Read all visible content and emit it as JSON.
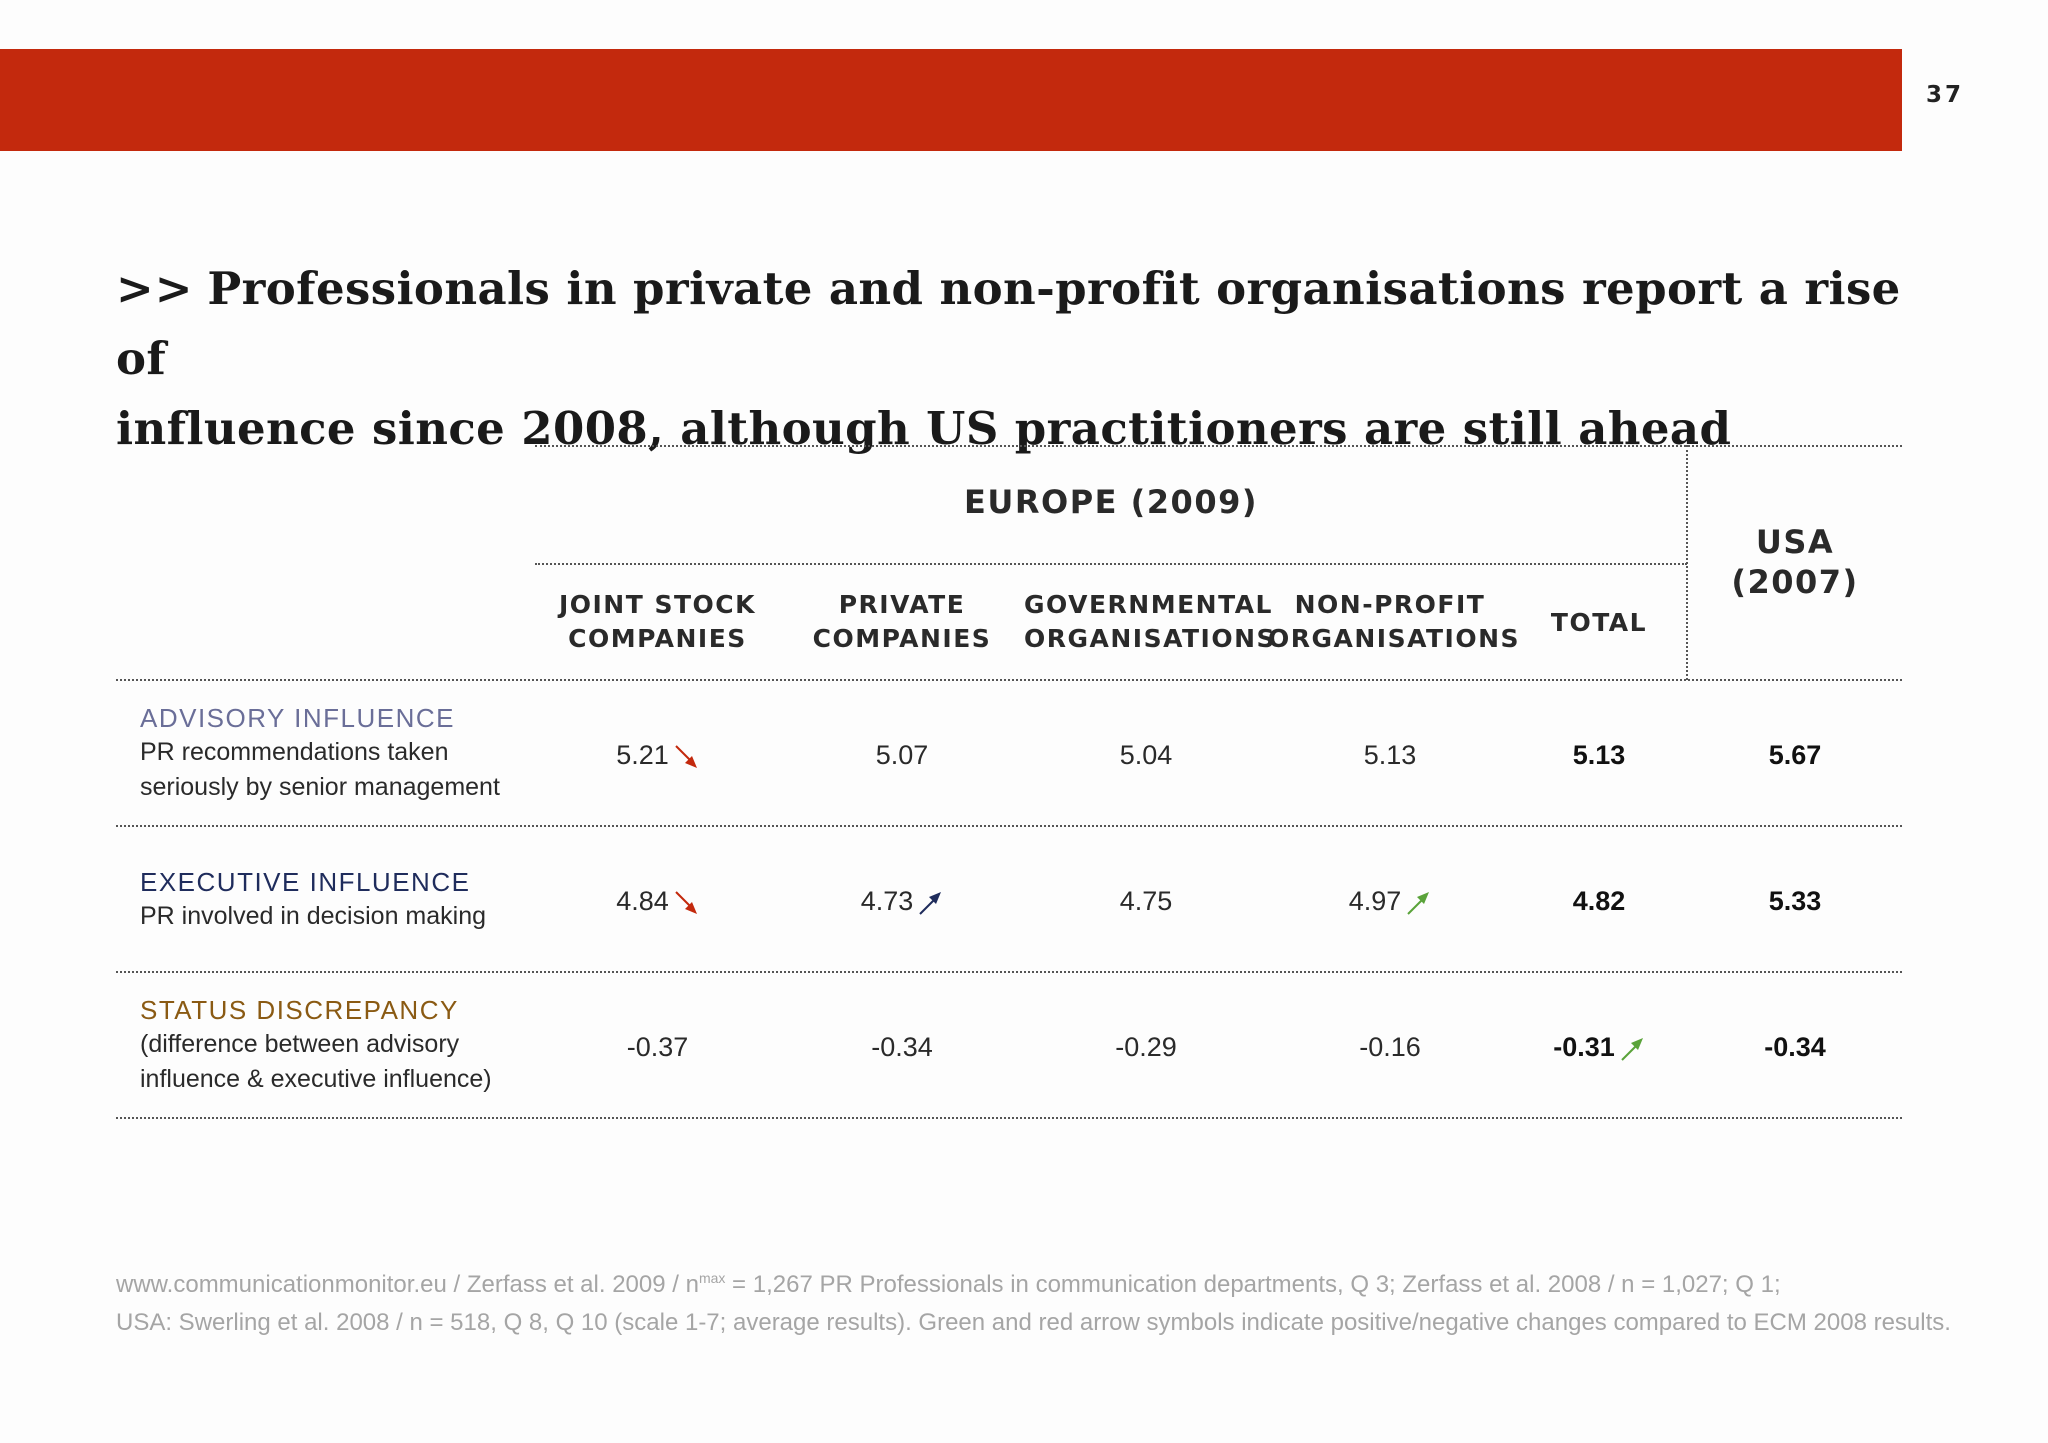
{
  "page_number": "37",
  "title": {
    "prefix": ">>",
    "line1": "Professionals in private and non-profit organisations report a rise of",
    "line2": "influence since 2008, although US practitioners are still ahead"
  },
  "colors": {
    "header_bar": "#c3290d",
    "advisory": "#6a6e98",
    "executive": "#1f2c5c",
    "status": "#8a5a13",
    "arrow_down_red": "#c3290d",
    "arrow_up_navy": "#1f2c5c",
    "arrow_up_green": "#5aa33a"
  },
  "table": {
    "group_europe": "EUROPE (2009)",
    "group_usa": "USA\n(2007)",
    "columns": [
      "JOINT STOCK\nCOMPANIES",
      "PRIVATE\nCOMPANIES",
      "GOVERNMENTAL\nORGANISATIONS",
      "NON-PROFIT\nORGANISATIONS",
      "TOTAL"
    ],
    "rows": [
      {
        "title": "ADVISORY INFLUENCE",
        "desc": "PR recommendations taken\nseriously by senior management",
        "cells": [
          {
            "value": "5.21",
            "arrow": "down-red"
          },
          {
            "value": "5.07",
            "arrow": ""
          },
          {
            "value": "5.04",
            "arrow": ""
          },
          {
            "value": "5.13",
            "arrow": ""
          },
          {
            "value": "5.13",
            "arrow": ""
          }
        ],
        "usa": "5.67"
      },
      {
        "title": "EXECUTIVE INFLUENCE",
        "desc": "PR involved in decision making",
        "cells": [
          {
            "value": "4.84",
            "arrow": "down-red"
          },
          {
            "value": "4.73",
            "arrow": "up-navy"
          },
          {
            "value": "4.75",
            "arrow": ""
          },
          {
            "value": "4.97",
            "arrow": "up-green"
          },
          {
            "value": "4.82",
            "arrow": ""
          }
        ],
        "usa": "5.33"
      },
      {
        "title": "STATUS DISCREPANCY",
        "desc": "(difference between advisory\ninfluence & executive influence)",
        "cells": [
          {
            "value": "-0.37",
            "arrow": ""
          },
          {
            "value": "-0.34",
            "arrow": ""
          },
          {
            "value": "-0.29",
            "arrow": ""
          },
          {
            "value": "-0.16",
            "arrow": ""
          },
          {
            "value": "-0.31",
            "arrow": "up-green"
          }
        ],
        "usa": "-0.34"
      }
    ]
  },
  "footnote": {
    "line1_a": "www.communicationmonitor.eu / Zerfass et al. 2009 / n",
    "line1_sup": "max",
    "line1_b": " = 1,267 PR Professionals in communication departments, Q 3; Zerfass et al. 2008 / n = 1,027; Q 1;",
    "line2": "USA: Swerling et al. 2008 / n = 518, Q 8, Q 10 (scale 1-7; average results). Green and red arrow symbols indicate positive/negative changes compared to ECM 2008 results."
  }
}
